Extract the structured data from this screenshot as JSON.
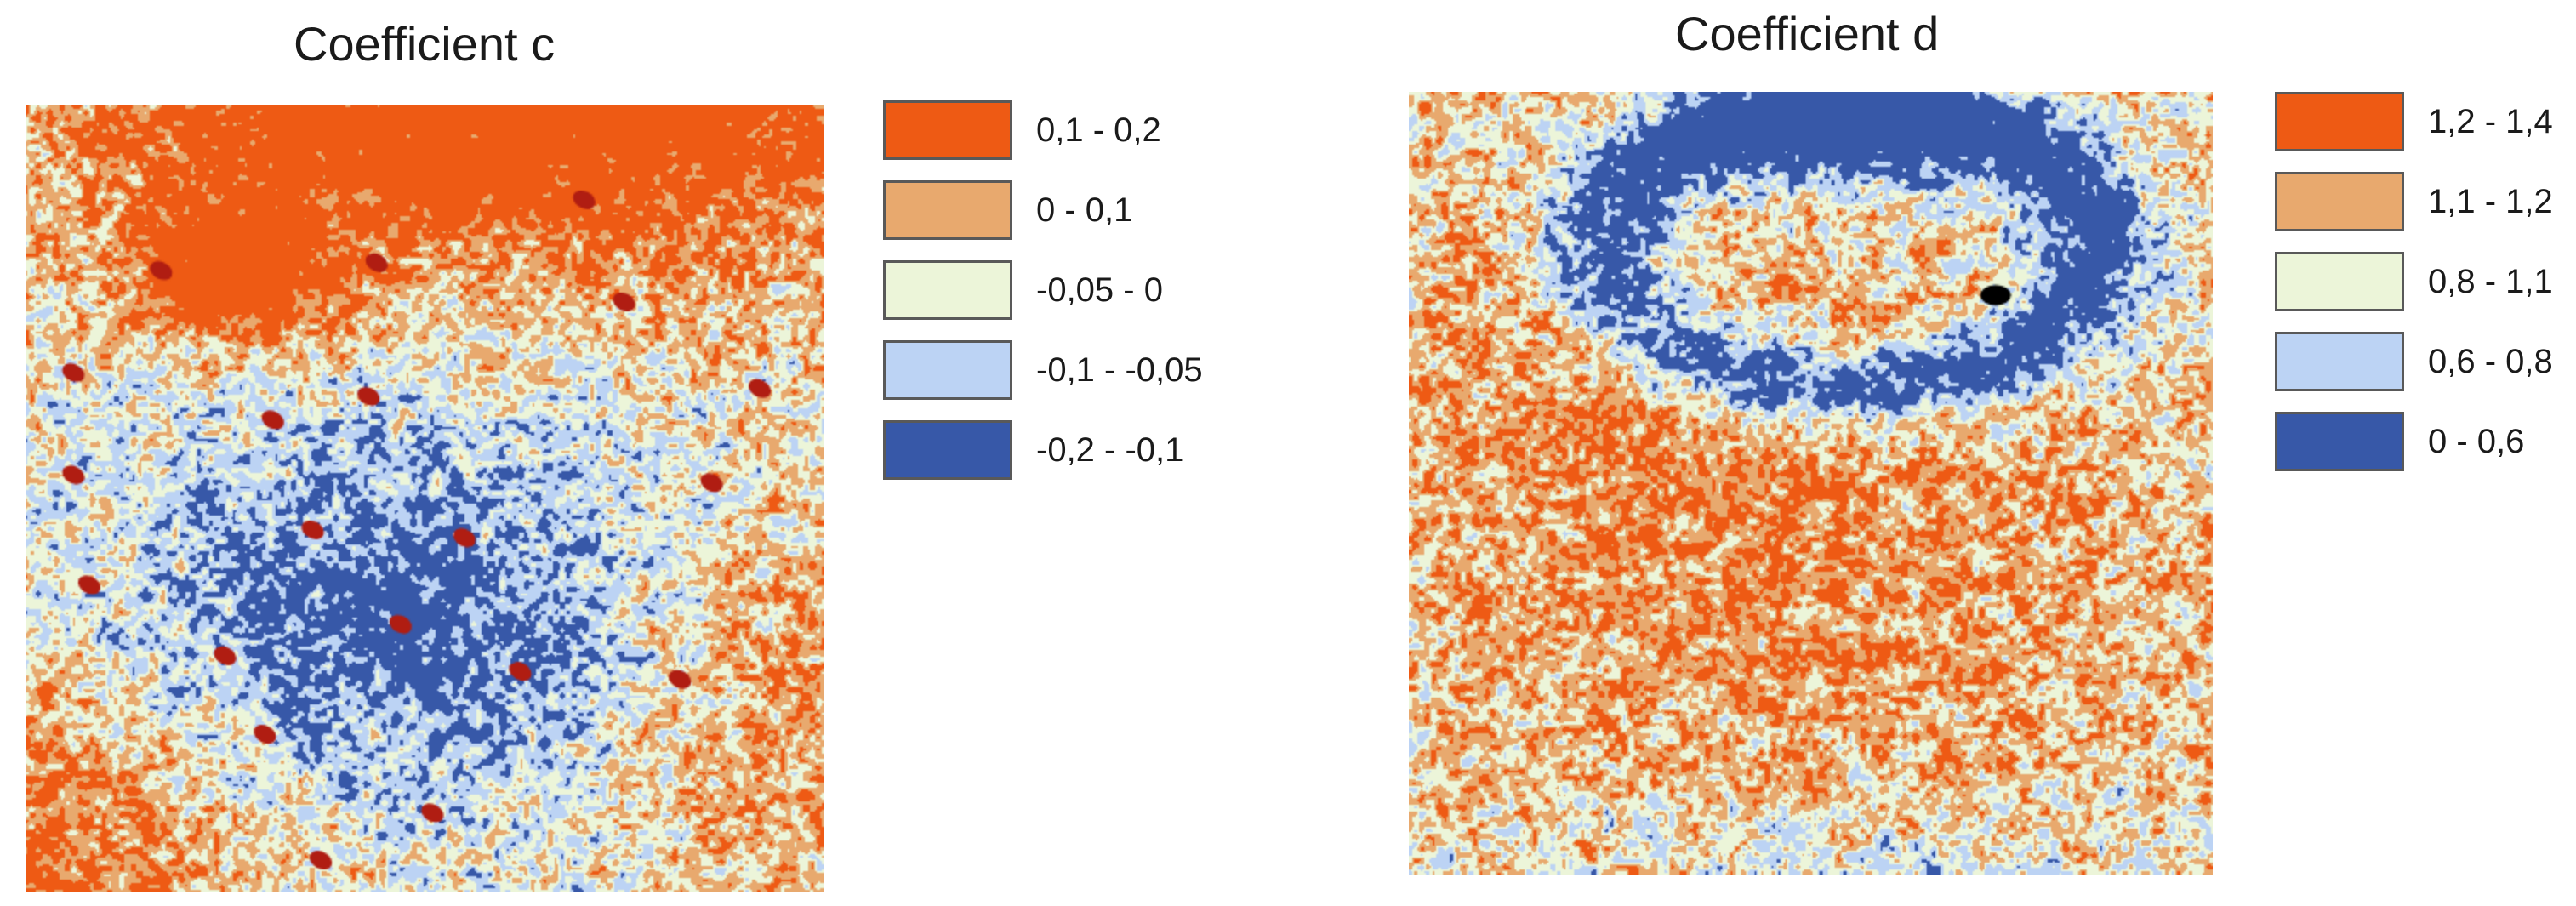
{
  "panels": [
    {
      "title": "Coefficient c",
      "legend": [
        {
          "label": "0,1 - 0,2",
          "color": "#ee5a14"
        },
        {
          "label": "0 - 0,1",
          "color": "#e8a96e"
        },
        {
          "label": "-0,05 - 0",
          "color": "#ecf5d9"
        },
        {
          "label": "-0,1 - -0,05",
          "color": "#bcd3f4"
        },
        {
          "label": "-0,2 - -0,1",
          "color": "#3758a8"
        }
      ],
      "extra_colors": {
        "spot": "#b01d12"
      }
    },
    {
      "title": "Coefficient d",
      "legend": [
        {
          "label": "1,2 - 1,4",
          "color": "#ee5a14"
        },
        {
          "label": "1,1 - 1,2",
          "color": "#e8a96e"
        },
        {
          "label": "0,8 - 1,1",
          "color": "#ecf5d9"
        },
        {
          "label": "0,6 - 0,8",
          "color": "#bcd3f4"
        },
        {
          "label": "0 - 0,6",
          "color": "#3758a8"
        }
      ],
      "extra_colors": {
        "spot": "#000000"
      }
    }
  ]
}
